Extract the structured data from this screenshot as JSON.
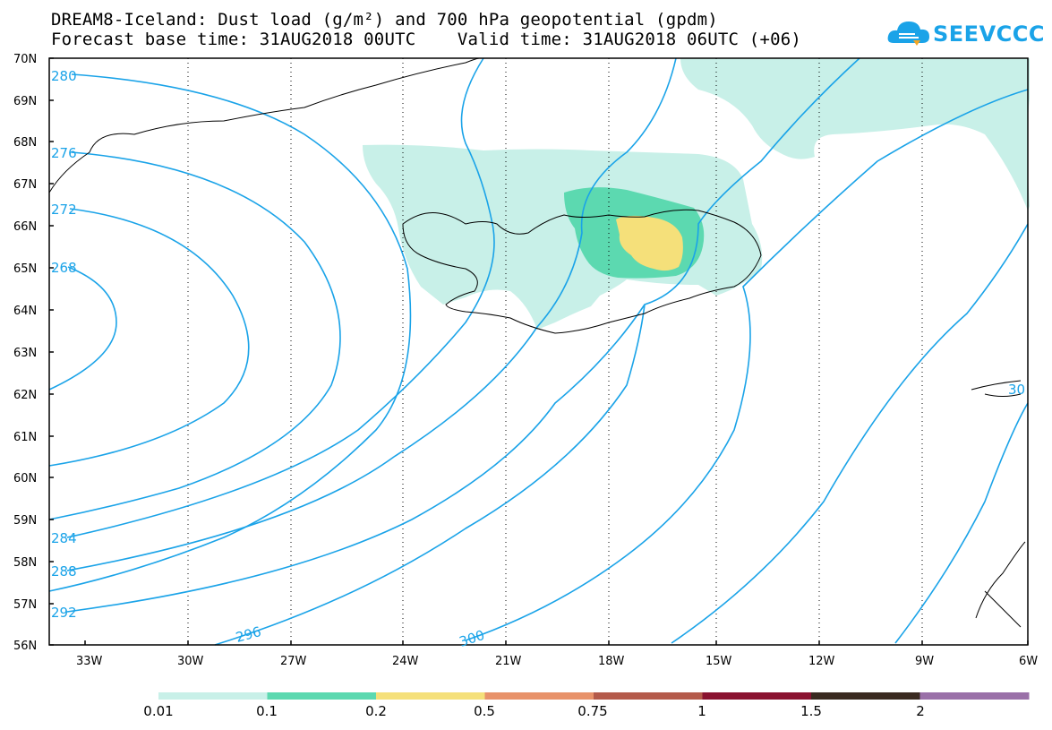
{
  "title_line1": "DREAM8-Iceland: Dust load (g/m²) and 700 hPa geopotential (gpdm)",
  "title_line2": "Forecast base time: 31AUG2018 00UTC    Valid time: 31AUG2018 06UTC (+06)",
  "logo_text": "SEEVCCC",
  "lat_labels": [
    "70N",
    "69N",
    "68N",
    "67N",
    "66N",
    "65N",
    "64N",
    "63N",
    "62N",
    "61N",
    "60N",
    "59N",
    "58N",
    "57N",
    "56N"
  ],
  "lon_labels": [
    "33W",
    "30W",
    "27W",
    "24W",
    "21W",
    "18W",
    "15W",
    "12W",
    "9W",
    "6W"
  ],
  "contour_labels": [
    "280",
    "276",
    "272",
    "268",
    "284",
    "288",
    "292",
    "296",
    "300",
    "30"
  ],
  "colorbar": {
    "labels": [
      "0.01",
      "0.1",
      "0.2",
      "0.5",
      "0.75",
      "1",
      "1.5",
      "2"
    ],
    "colors": [
      "#c8f0e8",
      "#5cd9b0",
      "#f5e07a",
      "#e8926a",
      "#b45a4a",
      "#8a1230",
      "#3a2a20",
      "#9a70a8"
    ]
  },
  "colors": {
    "contour": "#1aa3e8",
    "dust_low": "#c8f0e8",
    "dust_mid": "#5cd9b0",
    "dust_high": "#f5e07a"
  }
}
